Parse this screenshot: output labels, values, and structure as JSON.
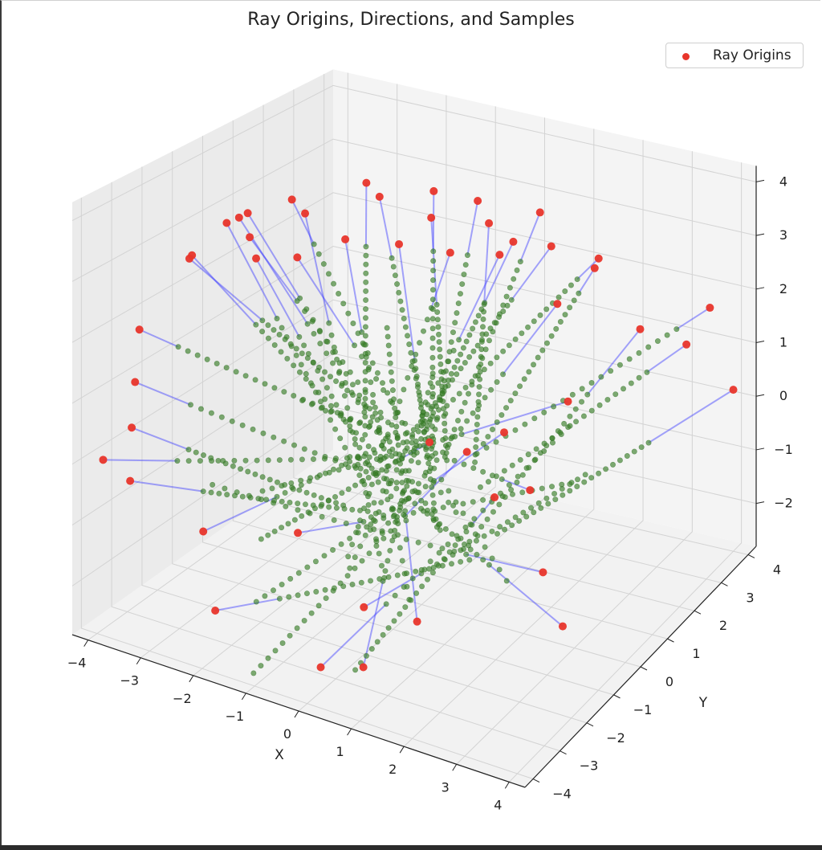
{
  "chart_data": {
    "type": "scatter",
    "projection": "3d",
    "title": "Ray Origins, Directions, and Samples",
    "xlabel": "X",
    "ylabel": "Y",
    "zlabel": "",
    "xlim": [
      -4.3,
      4.3
    ],
    "ylim": [
      -4.3,
      4.3
    ],
    "zlim": [
      -2.8,
      4.3
    ],
    "x_ticks": [
      -4,
      -3,
      -2,
      -1,
      0,
      1,
      2,
      3,
      4
    ],
    "y_ticks": [
      -4,
      -3,
      -2,
      -1,
      0,
      1,
      2,
      3,
      4
    ],
    "z_ticks": [
      -2,
      -1,
      0,
      1,
      2,
      3,
      4
    ],
    "grid": true,
    "legend": {
      "placement": "top-right",
      "entries": [
        "Ray Origins"
      ]
    },
    "colors": {
      "origins": "#e8352b",
      "directions": "#3a3aff",
      "samples": "#3b7f2a",
      "pane": "#f2f2f2",
      "grid": "#d3d3d3"
    },
    "series": [
      {
        "name": "Ray Origins",
        "marker": "dot",
        "points": [
          [
            -3.0,
            -1.0,
            3.5
          ],
          [
            -2.6,
            -1.4,
            3.8
          ],
          [
            -2.2,
            -0.6,
            3.9
          ],
          [
            -1.6,
            -1.2,
            4.0
          ],
          [
            -1.2,
            0.2,
            4.2
          ],
          [
            -0.6,
            -0.4,
            4.3
          ],
          [
            -0.1,
            0.6,
            4.2
          ],
          [
            0.3,
            -0.2,
            4.1
          ],
          [
            0.6,
            0.9,
            4.1
          ],
          [
            1.1,
            0.4,
            4.0
          ],
          [
            1.5,
            1.5,
            3.9
          ],
          [
            2.0,
            1.0,
            3.6
          ],
          [
            2.5,
            1.8,
            3.2
          ],
          [
            -3.3,
            -0.9,
            3.3
          ],
          [
            -3.5,
            -1.8,
            2.9
          ],
          [
            -3.8,
            -1.2,
            2.7
          ],
          [
            -3.2,
            -0.3,
            2.9
          ],
          [
            -2.9,
            -0.6,
            2.7
          ],
          [
            -2.5,
            0.1,
            2.6
          ],
          [
            -1.5,
            0.0,
            3.2
          ],
          [
            -0.9,
            0.8,
            3.0
          ],
          [
            0.0,
            1.0,
            3.0
          ],
          [
            0.8,
            1.8,
            3.1
          ],
          [
            1.2,
            0.6,
            3.4
          ],
          [
            2.2,
            2.2,
            2.8
          ],
          [
            1.9,
            1.4,
            2.4
          ],
          [
            -4.0,
            -2.6,
            1.8
          ],
          [
            -4.2,
            -2.4,
            0.8
          ],
          [
            -3.8,
            -3.2,
            0.4
          ],
          [
            -4.0,
            -3.8,
            0.0
          ],
          [
            -3.6,
            -3.6,
            -0.3
          ],
          [
            3.0,
            2.4,
            1.8
          ],
          [
            3.8,
            3.5,
            1.9
          ],
          [
            3.6,
            3.0,
            1.4
          ],
          [
            4.0,
            4.0,
            0.2
          ],
          [
            2.6,
            -0.4,
            -1.4
          ],
          [
            3.2,
            -0.8,
            -2.0
          ],
          [
            1.4,
            0.4,
            0.4
          ],
          [
            0.6,
            -0.8,
            0.5
          ],
          [
            1.0,
            -0.2,
            0.2
          ],
          [
            -1.4,
            -1.8,
            -1.2
          ],
          [
            -2.6,
            -2.9,
            -1.1
          ],
          [
            -2.2,
            -3.2,
            -2.2
          ],
          [
            -0.4,
            -1.3,
            -2.4
          ],
          [
            0.8,
            -1.6,
            -2.2
          ],
          [
            -0.4,
            -2.8,
            -2.8
          ],
          [
            0.2,
            -2.4,
            -2.8
          ],
          [
            1.8,
            0.6,
            -0.6
          ],
          [
            2.0,
            1.6,
            0.6
          ],
          [
            1.1,
            0.6,
            -0.9
          ]
        ]
      },
      {
        "name": "",
        "marker": "line",
        "points": []
      },
      {
        "name": "",
        "marker": "dot",
        "points": []
      }
    ]
  }
}
